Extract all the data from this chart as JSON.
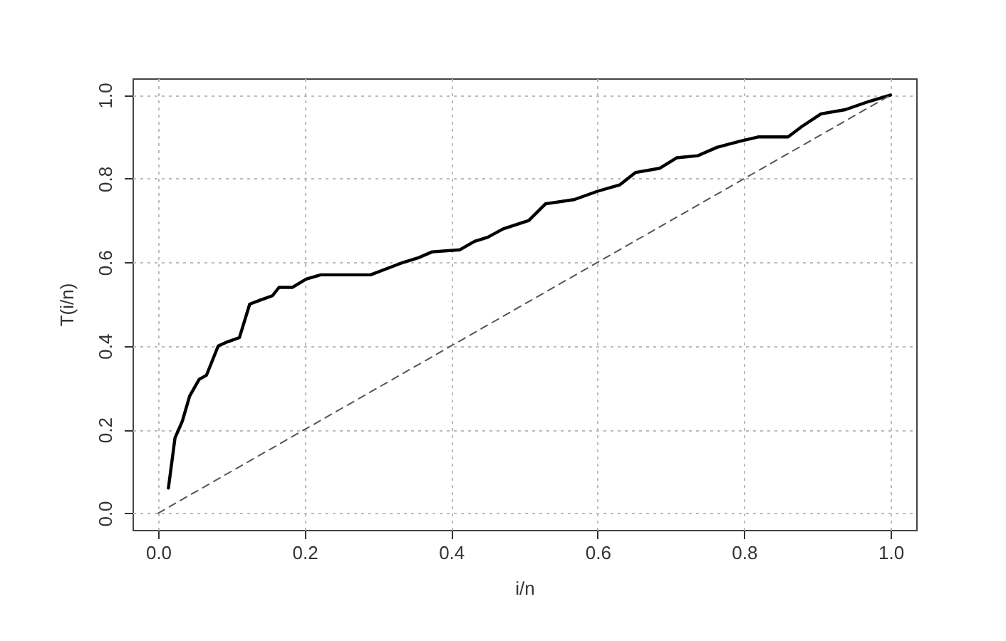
{
  "chart_data": {
    "type": "line",
    "xlabel": "i/n",
    "ylabel": "T(i/n)",
    "xlim": [
      -0.035,
      1.035
    ],
    "ylim": [
      -0.04,
      1.04
    ],
    "xticks": [
      {
        "value": 0,
        "label": "0.0"
      },
      0.2,
      0.4,
      0.6,
      0.8,
      {
        "value": 1,
        "label": "1.0"
      }
    ],
    "yticks": [
      {
        "value": 0,
        "label": "0.0"
      },
      0.2,
      0.4,
      0.6,
      0.8,
      {
        "value": 1,
        "label": "1.0"
      }
    ],
    "grid": true,
    "marker": "none",
    "series": [
      {
        "color": "#000000",
        "line_style": "solid",
        "x": [
          0.014,
          0.023,
          0.033,
          0.043,
          0.056,
          0.066,
          0.082,
          0.095,
          0.111,
          0.125,
          0.14,
          0.156,
          0.165,
          0.183,
          0.202,
          0.222,
          0.257,
          0.29,
          0.305,
          0.335,
          0.354,
          0.374,
          0.412,
          0.432,
          0.45,
          0.471,
          0.506,
          0.529,
          0.568,
          0.6,
          0.63,
          0.652,
          0.685,
          0.708,
          0.737,
          0.763,
          0.795,
          0.82,
          0.86,
          0.879,
          0.905,
          0.938,
          0.971,
          1.0
        ],
        "values": [
          0.06,
          0.18,
          0.22,
          0.28,
          0.32,
          0.33,
          0.4,
          0.41,
          0.42,
          0.5,
          0.51,
          0.52,
          0.54,
          0.54,
          0.56,
          0.57,
          0.57,
          0.57,
          0.58,
          0.6,
          0.61,
          0.625,
          0.63,
          0.65,
          0.66,
          0.68,
          0.7,
          0.74,
          0.75,
          0.77,
          0.785,
          0.815,
          0.825,
          0.85,
          0.855,
          0.875,
          0.89,
          0.9,
          0.9,
          0.925,
          0.955,
          0.965,
          0.985,
          1.0
        ]
      },
      {
        "color": "#555555",
        "line_style": "dashed",
        "x": [
          0,
          1
        ],
        "values": [
          0,
          1
        ]
      }
    ]
  }
}
